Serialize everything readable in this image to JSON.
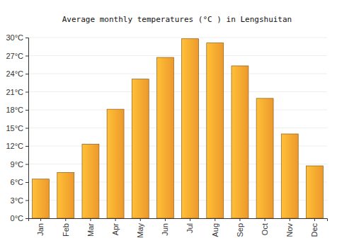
{
  "chart_data": {
    "type": "bar",
    "title": "Average monthly temperatures (°C ) in Lengshuitan",
    "categories": [
      "Jan",
      "Feb",
      "Mar",
      "Apr",
      "May",
      "Jun",
      "Jul",
      "Aug",
      "Sep",
      "Oct",
      "Nov",
      "Dec"
    ],
    "values": [
      6.5,
      7.6,
      12.3,
      18.1,
      23.1,
      26.7,
      29.8,
      29.1,
      25.3,
      19.9,
      14.0,
      8.7
    ],
    "color": "#f9a12e",
    "ylim": [
      0,
      30
    ],
    "yticks": [
      {
        "value": 0,
        "label": "0°C"
      },
      {
        "value": 3,
        "label": "3°C"
      },
      {
        "value": 6,
        "label": "6°C"
      },
      {
        "value": 9,
        "label": "9°C"
      },
      {
        "value": 12,
        "label": "12°C"
      },
      {
        "value": 15,
        "label": "15°C"
      },
      {
        "value": 18,
        "label": "18°C"
      },
      {
        "value": 21,
        "label": "21°C"
      },
      {
        "value": 24,
        "label": "24°C"
      },
      {
        "value": 27,
        "label": "27°C"
      },
      {
        "value": 30,
        "label": "30°C"
      }
    ],
    "grid": true
  }
}
